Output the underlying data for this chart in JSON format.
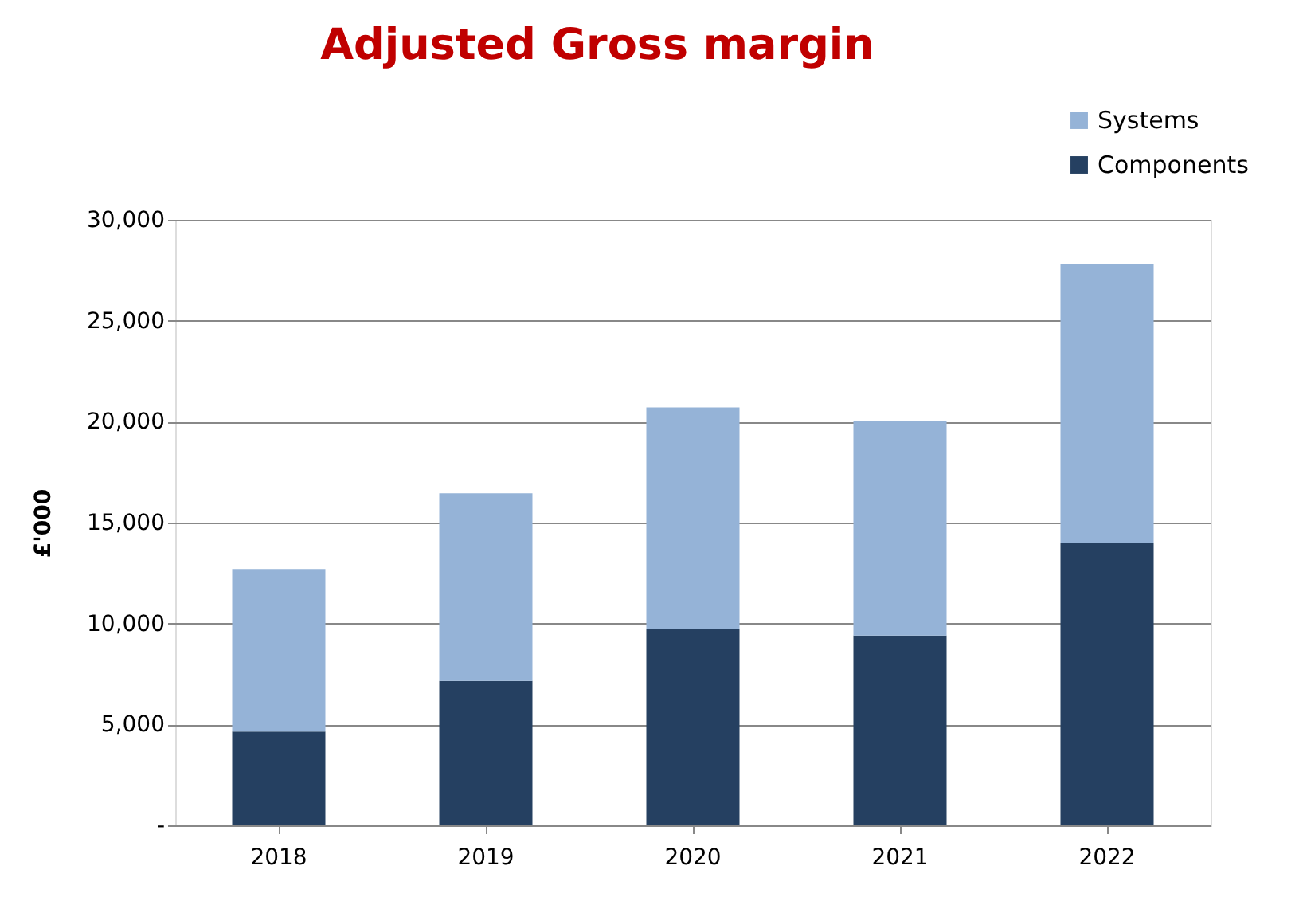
{
  "chart_data": {
    "type": "bar",
    "title": "Adjusted Gross margin",
    "ylabel": "£'000",
    "categories": [
      "2018",
      "2019",
      "2020",
      "2021",
      "2022"
    ],
    "stacked": true,
    "series": [
      {
        "name": "Components",
        "color": "#254061",
        "values": [
          4650,
          7150,
          9750,
          9400,
          14000
        ]
      },
      {
        "name": "Systems",
        "color": "#95b3d7",
        "values": [
          8050,
          9300,
          10950,
          10650,
          13800
        ]
      }
    ],
    "ylim": [
      0,
      30000
    ],
    "yticks": [
      {
        "value": 0,
        "label": "-"
      },
      {
        "value": 5000,
        "label": "5,000"
      },
      {
        "value": 10000,
        "label": "10,000"
      },
      {
        "value": 15000,
        "label": "15,000"
      },
      {
        "value": 20000,
        "label": "20,000"
      },
      {
        "value": 25000,
        "label": "25,000"
      },
      {
        "value": 30000,
        "label": "30,000"
      }
    ],
    "grid": "y",
    "legend": "top right"
  }
}
